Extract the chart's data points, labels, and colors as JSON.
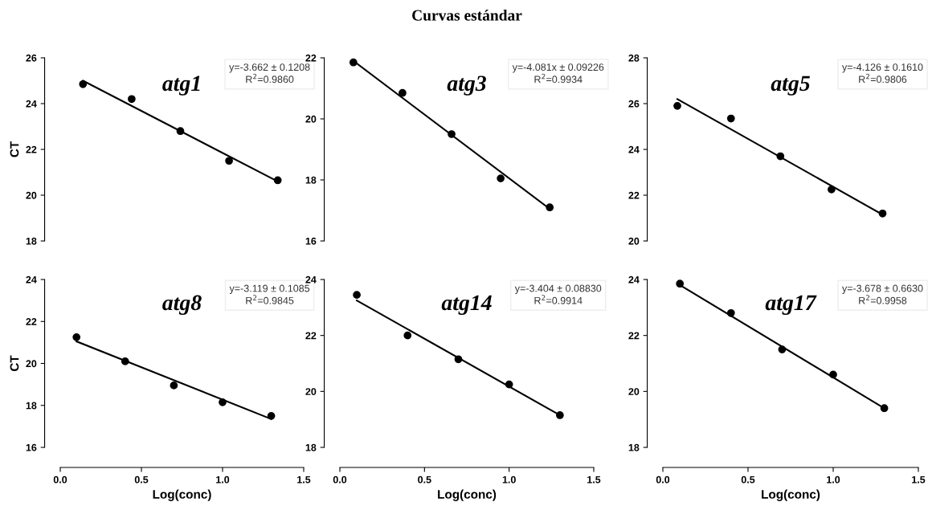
{
  "chart_data": [
    {
      "type": "scatter",
      "ylabel": "CT",
      "xlim": [
        0,
        1.5
      ],
      "ylim": [
        18,
        26
      ],
      "yticks": [
        18,
        20,
        22,
        24,
        26
      ],
      "tick_labels": "y",
      "grid": false,
      "legend": false,
      "annotations": [
        "atg1",
        "y=-3.662 ± 0.1208\nR$^{2}$=0.9860"
      ],
      "series": [
        {
          "type": "scatter",
          "marker": "circle",
          "color": "#000000",
          "x": [
            0.14,
            0.44,
            0.74,
            1.04,
            1.34
          ],
          "values": [
            24.85,
            24.2,
            22.8,
            21.5,
            20.65
          ]
        },
        {
          "type": "line",
          "marker": "none",
          "color": "#000000",
          "x": [
            0.14,
            1.34
          ],
          "values": [
            25.0,
            20.6
          ]
        }
      ]
    },
    {
      "type": "scatter",
      "title": "Curvas estándar",
      "xlim": [
        0,
        1.5
      ],
      "ylim": [
        16,
        22
      ],
      "yticks": [
        16,
        18,
        20,
        22
      ],
      "tick_labels": "y",
      "grid": false,
      "legend": false,
      "annotations": [
        "atg3",
        "y=-4.081x ± 0.09226\nR$^{2}$=0.9934"
      ],
      "series": [
        {
          "type": "scatter",
          "marker": "circle",
          "color": "#000000",
          "x": [
            0.08,
            0.37,
            0.66,
            0.95,
            1.24
          ],
          "values": [
            21.85,
            20.85,
            19.5,
            18.05,
            17.1
          ]
        },
        {
          "type": "line",
          "marker": "none",
          "color": "#000000",
          "x": [
            0.08,
            1.24
          ],
          "values": [
            21.9,
            17.05
          ]
        }
      ]
    },
    {
      "type": "scatter",
      "xlim": [
        0,
        1.5
      ],
      "ylim": [
        20,
        28
      ],
      "yticks": [
        20,
        22,
        24,
        26,
        28
      ],
      "tick_labels": "y",
      "grid": false,
      "legend": false,
      "annotations": [
        "atg5",
        "y=-4.126 ± 0.1610\nR$^{2}$=0.9806"
      ],
      "series": [
        {
          "type": "scatter",
          "marker": "circle",
          "color": "#000000",
          "x": [
            0.085,
            0.4,
            0.69,
            0.99,
            1.29
          ],
          "values": [
            25.9,
            25.35,
            23.7,
            22.25,
            21.2
          ]
        },
        {
          "type": "line",
          "marker": "none",
          "color": "#000000",
          "x": [
            0.085,
            1.29
          ],
          "values": [
            26.2,
            21.15
          ]
        }
      ]
    },
    {
      "type": "scatter",
      "xlabel": "Log(conc)",
      "ylabel": "CT",
      "xlim": [
        0,
        1.5
      ],
      "xticks": [
        {
          "value": 0,
          "label": "0.0"
        },
        {
          "value": 0.5,
          "label": "0.5"
        },
        {
          "value": 1,
          "label": "1.0"
        },
        {
          "value": 1.5,
          "label": "1.5"
        }
      ],
      "ylim": [
        16,
        24
      ],
      "yticks": [
        16,
        18,
        20,
        22,
        24
      ],
      "grid": false,
      "legend": false,
      "annotations": [
        "atg8",
        "y=-3.119 ± 0.1085\nR$^{2}$=0.9845"
      ],
      "series": [
        {
          "type": "scatter",
          "marker": "circle",
          "color": "#000000",
          "x": [
            0.1,
            0.4,
            0.7,
            1.0,
            1.3
          ],
          "values": [
            21.25,
            20.1,
            18.95,
            18.15,
            17.5
          ]
        },
        {
          "type": "line",
          "marker": "none",
          "color": "#000000",
          "x": [
            0.1,
            1.3
          ],
          "values": [
            21.05,
            17.35
          ]
        }
      ]
    },
    {
      "type": "scatter",
      "xlabel": "Log(conc)",
      "xlim": [
        0,
        1.5
      ],
      "xticks": [
        {
          "value": 0,
          "label": "0.0"
        },
        {
          "value": 0.5,
          "label": "0.5"
        },
        {
          "value": 1,
          "label": "1.0"
        },
        {
          "value": 1.5,
          "label": "1.5"
        }
      ],
      "ylim": [
        18,
        24
      ],
      "yticks": [
        18,
        20,
        22,
        24
      ],
      "grid": false,
      "legend": false,
      "annotations": [
        "atg14",
        "y=-3.404 ± 0.08830\nR$^{2}$=0.9914"
      ],
      "series": [
        {
          "type": "scatter",
          "marker": "circle",
          "color": "#000000",
          "x": [
            0.1,
            0.4,
            0.7,
            1.0,
            1.3
          ],
          "values": [
            23.45,
            22.0,
            21.15,
            20.25,
            19.15
          ]
        },
        {
          "type": "line",
          "marker": "none",
          "color": "#000000",
          "x": [
            0.1,
            1.3
          ],
          "values": [
            23.25,
            19.15
          ]
        }
      ]
    },
    {
      "type": "scatter",
      "xlabel": "Log(conc)",
      "xlim": [
        0,
        1.5
      ],
      "xticks": [
        {
          "value": 0,
          "label": "0.0"
        },
        {
          "value": 0.5,
          "label": "0.5"
        },
        {
          "value": 1,
          "label": "1.0"
        },
        {
          "value": 1.5,
          "label": "1.5"
        }
      ],
      "ylim": [
        18,
        24
      ],
      "yticks": [
        18,
        20,
        22,
        24
      ],
      "grid": false,
      "legend": false,
      "annotations": [
        "atg17",
        "y=-3.678 ± 0.6630\nR$^{2}$=0.9958"
      ],
      "series": [
        {
          "type": "scatter",
          "marker": "circle",
          "color": "#000000",
          "x": [
            0.1,
            0.4,
            0.7,
            1.0,
            1.3
          ],
          "values": [
            23.85,
            22.8,
            21.5,
            20.6,
            19.4
          ]
        },
        {
          "type": "line",
          "marker": "none",
          "color": "#000000",
          "x": [
            0.1,
            1.3
          ],
          "values": [
            23.8,
            19.4
          ]
        }
      ]
    }
  ]
}
